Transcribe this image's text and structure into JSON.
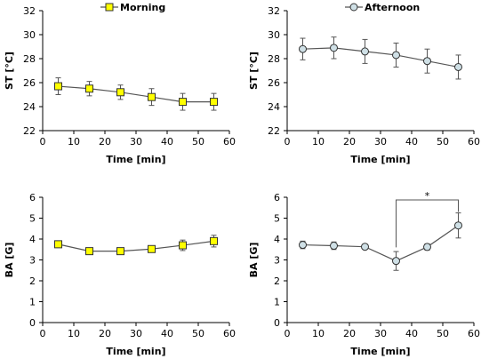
{
  "chart_data": [
    {
      "type": "line",
      "xlabel": "Time [min]",
      "ylabel": "ST [°C]",
      "xlim": [
        0,
        60
      ],
      "ylim": [
        22,
        32
      ],
      "xticks": [
        0,
        10,
        20,
        30,
        40,
        50,
        60
      ],
      "yticks": [
        22,
        24,
        26,
        28,
        30,
        32
      ],
      "legend_position": "top-center",
      "series": [
        {
          "name": "Morning",
          "marker": "square",
          "color": "#ffff00",
          "x": [
            5,
            15,
            25,
            35,
            45,
            55
          ],
          "y": [
            25.7,
            25.5,
            25.2,
            24.8,
            24.4,
            24.4
          ],
          "err": [
            0.7,
            0.6,
            0.6,
            0.7,
            0.7,
            0.7
          ]
        }
      ]
    },
    {
      "type": "line",
      "xlabel": "Time [min]",
      "ylabel": "ST [°C]",
      "xlim": [
        0,
        60
      ],
      "ylim": [
        22,
        32
      ],
      "xticks": [
        0,
        10,
        20,
        30,
        40,
        50,
        60
      ],
      "yticks": [
        22,
        24,
        26,
        28,
        30,
        32
      ],
      "legend_position": "top-center",
      "series": [
        {
          "name": "Afternoon",
          "marker": "circle",
          "color": "#cfe0e6",
          "x": [
            5,
            15,
            25,
            35,
            45,
            55
          ],
          "y": [
            28.8,
            28.9,
            28.6,
            28.3,
            27.8,
            27.3
          ],
          "err": [
            0.9,
            0.9,
            1.0,
            1.0,
            1.0,
            1.0
          ]
        }
      ]
    },
    {
      "type": "line",
      "xlabel": "Time [min]",
      "ylabel": "BA [G]",
      "xlim": [
        0,
        60
      ],
      "ylim": [
        0,
        6
      ],
      "xticks": [
        0,
        10,
        20,
        30,
        40,
        50,
        60
      ],
      "yticks": [
        0,
        1,
        2,
        3,
        4,
        5,
        6
      ],
      "series": [
        {
          "name": "",
          "marker": "square",
          "color": "#ffff00",
          "x": [
            5,
            15,
            25,
            35,
            45,
            55
          ],
          "y": [
            3.75,
            3.42,
            3.42,
            3.52,
            3.7,
            3.9
          ],
          "err": [
            0.1,
            0.1,
            0.08,
            0.12,
            0.25,
            0.28
          ]
        }
      ]
    },
    {
      "type": "line",
      "xlabel": "Time [min]",
      "ylabel": "BA [G]",
      "xlim": [
        0,
        60
      ],
      "ylim": [
        0,
        6
      ],
      "xticks": [
        0,
        10,
        20,
        30,
        40,
        50,
        60
      ],
      "yticks": [
        0,
        1,
        2,
        3,
        4,
        5,
        6
      ],
      "annotation": {
        "text": "*",
        "from_x": 35,
        "to_x": 55
      },
      "series": [
        {
          "name": "",
          "marker": "circle",
          "color": "#cfe0e6",
          "x": [
            5,
            15,
            25,
            35,
            45,
            55
          ],
          "y": [
            3.72,
            3.68,
            3.63,
            2.95,
            3.62,
            4.65
          ],
          "err": [
            0.18,
            0.18,
            0.08,
            0.45,
            0.15,
            0.6
          ]
        }
      ]
    }
  ]
}
